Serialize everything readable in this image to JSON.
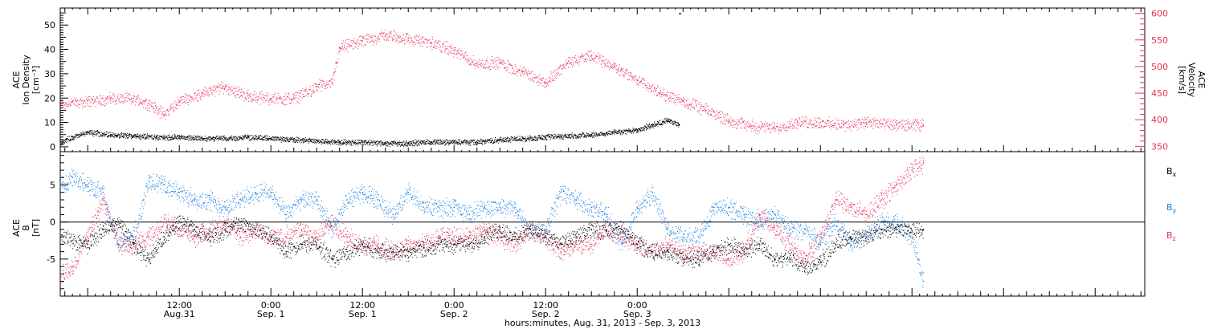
{
  "colors": {
    "black": "#000000",
    "pink": "#e8325a",
    "blue": "#1a82e0",
    "grid": "#000000"
  },
  "chart_data": [
    {
      "type": "scatter",
      "panel": "top",
      "left_axis": {
        "label_lines": [
          "ACE",
          "Ion Density",
          "[cm⁻³]"
        ],
        "ylim": [
          -2,
          57
        ],
        "ticks": [
          0,
          10,
          20,
          30,
          40,
          50
        ],
        "color": "#000000"
      },
      "right_axis": {
        "label_lines": [
          "ACE",
          "Velocity",
          "[km/s]"
        ],
        "ylim": [
          340,
          610
        ],
        "ticks": [
          350,
          400,
          450,
          500,
          550,
          600
        ],
        "color": "#e8325a"
      },
      "series": [
        {
          "axis": "left",
          "color": "#000000",
          "points": [
            [
              -3.5,
              2
            ],
            [
              -2,
              4
            ],
            [
              0,
              6
            ],
            [
              3,
              5
            ],
            [
              6,
              4.5
            ],
            [
              9,
              4
            ],
            [
              12,
              4
            ],
            [
              15,
              3.5
            ],
            [
              18,
              3.5
            ],
            [
              21,
              4
            ],
            [
              24,
              3.5
            ],
            [
              27,
              3
            ],
            [
              30,
              2.5
            ],
            [
              33,
              2
            ],
            [
              36,
              2
            ],
            [
              39,
              1.5
            ],
            [
              42,
              1.5
            ],
            [
              45,
              2
            ],
            [
              48,
              2
            ],
            [
              51,
              2
            ],
            [
              54,
              3
            ],
            [
              57,
              3.5
            ],
            [
              60,
              4
            ],
            [
              63,
              4.5
            ],
            [
              66,
              5
            ],
            [
              69,
              6
            ],
            [
              72,
              7
            ],
            [
              74,
              9
            ],
            [
              76,
              11
            ],
            [
              77.5,
              9
            ]
          ]
        },
        {
          "axis": "right",
          "color": "#e8325a",
          "points": [
            [
              -3.5,
              430
            ],
            [
              0,
              435
            ],
            [
              3,
              440
            ],
            [
              6,
              440
            ],
            [
              8,
              430
            ],
            [
              10,
              410
            ],
            [
              12,
              435
            ],
            [
              15,
              450
            ],
            [
              18,
              462
            ],
            [
              21,
              445
            ],
            [
              24,
              440
            ],
            [
              27,
              440
            ],
            [
              30,
              462
            ],
            [
              32,
              470
            ],
            [
              33,
              535
            ],
            [
              36,
              548
            ],
            [
              39,
              560
            ],
            [
              42,
              552
            ],
            [
              45,
              545
            ],
            [
              48,
              530
            ],
            [
              51,
              505
            ],
            [
              54,
              508
            ],
            [
              57,
              490
            ],
            [
              60,
              470
            ],
            [
              63,
              510
            ],
            [
              66,
              520
            ],
            [
              69,
              500
            ],
            [
              72,
              475
            ],
            [
              75,
              450
            ],
            [
              78,
              435
            ],
            [
              81,
              418
            ],
            [
              84,
              400
            ],
            [
              87,
              388
            ],
            [
              90,
              385
            ],
            [
              93,
              395
            ],
            [
              96,
              395
            ],
            [
              99,
              390
            ],
            [
              102,
              395
            ],
            [
              106,
              390
            ],
            [
              109.5,
              390
            ]
          ]
        }
      ],
      "stray_marks": [
        [
          77.5,
          55
        ]
      ]
    },
    {
      "type": "scatter",
      "panel": "bottom",
      "left_axis": {
        "label_lines": [
          "ACE",
          "B",
          "[nT]"
        ],
        "ylim": [
          -10,
          9.5
        ],
        "ticks": [
          -5,
          0,
          5
        ]
      },
      "legend": [
        {
          "label": "Bx",
          "color": "#000000"
        },
        {
          "label": "By",
          "color": "#1a82e0"
        },
        {
          "label": "Bz",
          "color": "#e8325a"
        }
      ],
      "zero_line": true,
      "series": [
        {
          "name": "Bx",
          "color": "#000000",
          "points": [
            [
              -3.5,
              -2
            ],
            [
              0,
              -3
            ],
            [
              2,
              -1
            ],
            [
              4,
              0
            ],
            [
              6,
              -3
            ],
            [
              8,
              -5
            ],
            [
              10,
              -2
            ],
            [
              12,
              0
            ],
            [
              14,
              -1
            ],
            [
              16,
              -2
            ],
            [
              18,
              -1
            ],
            [
              20,
              0
            ],
            [
              22,
              -1
            ],
            [
              24,
              -2
            ],
            [
              26,
              -4
            ],
            [
              28,
              -3
            ],
            [
              30,
              -3
            ],
            [
              32,
              -5
            ],
            [
              34,
              -4
            ],
            [
              36,
              -3
            ],
            [
              38,
              -4
            ],
            [
              40,
              -4
            ],
            [
              42,
              -4
            ],
            [
              44,
              -3.5
            ],
            [
              46,
              -3
            ],
            [
              48,
              -3
            ],
            [
              50,
              -3
            ],
            [
              52,
              -2
            ],
            [
              54,
              -1
            ],
            [
              56,
              -2
            ],
            [
              58,
              -1
            ],
            [
              60,
              -2
            ],
            [
              62,
              -3
            ],
            [
              64,
              -2
            ],
            [
              66,
              -1
            ],
            [
              68,
              -1
            ],
            [
              70,
              -1
            ],
            [
              72,
              -3
            ],
            [
              74,
              -4
            ],
            [
              76,
              -4
            ],
            [
              78,
              -5
            ],
            [
              80,
              -5
            ],
            [
              82,
              -4
            ],
            [
              84,
              -3
            ],
            [
              86,
              -4
            ],
            [
              88,
              -3
            ],
            [
              90,
              -5
            ],
            [
              92,
              -5
            ],
            [
              94,
              -6
            ],
            [
              96,
              -5.5
            ],
            [
              98,
              -3
            ],
            [
              100,
              -2
            ],
            [
              102,
              -2
            ],
            [
              104,
              -1
            ],
            [
              106,
              -1
            ],
            [
              109.5,
              -1
            ]
          ]
        },
        {
          "name": "By",
          "color": "#1a82e0",
          "points": [
            [
              -3.5,
              5
            ],
            [
              -2,
              6
            ],
            [
              0,
              5
            ],
            [
              2,
              4
            ],
            [
              4,
              -3
            ],
            [
              6,
              -2
            ],
            [
              8,
              5.5
            ],
            [
              10,
              5
            ],
            [
              12,
              4
            ],
            [
              14,
              3
            ],
            [
              16,
              3
            ],
            [
              18,
              2
            ],
            [
              20,
              3
            ],
            [
              22,
              4
            ],
            [
              24,
              4
            ],
            [
              26,
              1
            ],
            [
              28,
              3
            ],
            [
              30,
              3
            ],
            [
              32,
              -1
            ],
            [
              34,
              3
            ],
            [
              36,
              4
            ],
            [
              38,
              3
            ],
            [
              40,
              1
            ],
            [
              42,
              4
            ],
            [
              44,
              2
            ],
            [
              46,
              2
            ],
            [
              48,
              2
            ],
            [
              50,
              1
            ],
            [
              52,
              2
            ],
            [
              54,
              2
            ],
            [
              56,
              2
            ],
            [
              58,
              -1
            ],
            [
              60,
              -1
            ],
            [
              62,
              4
            ],
            [
              64,
              3
            ],
            [
              66,
              2
            ],
            [
              68,
              1
            ],
            [
              70,
              -3
            ],
            [
              72,
              2
            ],
            [
              74,
              4
            ],
            [
              76,
              -1
            ],
            [
              78,
              -2
            ],
            [
              80,
              -2
            ],
            [
              82,
              2
            ],
            [
              84,
              2
            ],
            [
              86,
              1
            ],
            [
              88,
              0
            ],
            [
              90,
              1
            ],
            [
              92,
              -1
            ],
            [
              94,
              -1
            ],
            [
              96,
              -3
            ],
            [
              98,
              0
            ],
            [
              100,
              -3
            ],
            [
              102,
              -2
            ],
            [
              104,
              0
            ],
            [
              106,
              0
            ],
            [
              108,
              -2
            ],
            [
              109.5,
              -8
            ]
          ]
        },
        {
          "name": "Bz",
          "color": "#e8325a",
          "points": [
            [
              -3.5,
              -7
            ],
            [
              -2,
              -6
            ],
            [
              0,
              -2
            ],
            [
              2,
              3
            ],
            [
              4,
              -3
            ],
            [
              6,
              -3
            ],
            [
              8,
              -2
            ],
            [
              10,
              0
            ],
            [
              12,
              -1
            ],
            [
              14,
              -2
            ],
            [
              16,
              -1
            ],
            [
              18,
              0
            ],
            [
              20,
              -2
            ],
            [
              22,
              -1
            ],
            [
              24,
              -2
            ],
            [
              26,
              -2
            ],
            [
              28,
              -1
            ],
            [
              30,
              -2
            ],
            [
              32,
              0
            ],
            [
              34,
              -2
            ],
            [
              36,
              -3
            ],
            [
              38,
              -3
            ],
            [
              40,
              -4
            ],
            [
              42,
              -3
            ],
            [
              44,
              -3
            ],
            [
              46,
              -2
            ],
            [
              48,
              -2
            ],
            [
              50,
              -2
            ],
            [
              52,
              -1
            ],
            [
              54,
              -2
            ],
            [
              56,
              -3
            ],
            [
              58,
              -1
            ],
            [
              60,
              -2
            ],
            [
              62,
              -4
            ],
            [
              64,
              -3
            ],
            [
              66,
              -3
            ],
            [
              68,
              -1
            ],
            [
              70,
              -2
            ],
            [
              72,
              -3
            ],
            [
              74,
              -4
            ],
            [
              76,
              -3
            ],
            [
              78,
              -4
            ],
            [
              80,
              -4
            ],
            [
              82,
              -4
            ],
            [
              84,
              -5
            ],
            [
              86,
              -4
            ],
            [
              88,
              1
            ],
            [
              90,
              -1
            ],
            [
              92,
              -3
            ],
            [
              94,
              -5
            ],
            [
              96,
              -2
            ],
            [
              98,
              3
            ],
            [
              100,
              2
            ],
            [
              102,
              1
            ],
            [
              104,
              3
            ],
            [
              106,
              5
            ],
            [
              108,
              7
            ],
            [
              109.5,
              8
            ]
          ]
        }
      ]
    }
  ],
  "x_axis": {
    "range": [
      -3.6,
      138.5
    ],
    "major_ticks": [
      {
        "hour": 12,
        "time": "12:00",
        "date": "Aug.31"
      },
      {
        "hour": 24,
        "time": "0:00",
        "date": "Sep. 1"
      },
      {
        "hour": 36,
        "time": "12:00",
        "date": "Sep. 1"
      },
      {
        "hour": 48,
        "time": "0:00",
        "date": "Sep. 2"
      },
      {
        "hour": 60,
        "time": "12:00",
        "date": "Sep. 2"
      },
      {
        "hour": 72,
        "time": "0:00",
        "date": "Sep. 3"
      }
    ],
    "title": "hours:minutes, Aug. 31, 2013 - Sep. 3, 2013"
  },
  "legend_labels": {
    "bx": "B",
    "bx_sub": "x",
    "by": "B",
    "by_sub": "y",
    "bz": "B",
    "bz_sub": "z"
  }
}
